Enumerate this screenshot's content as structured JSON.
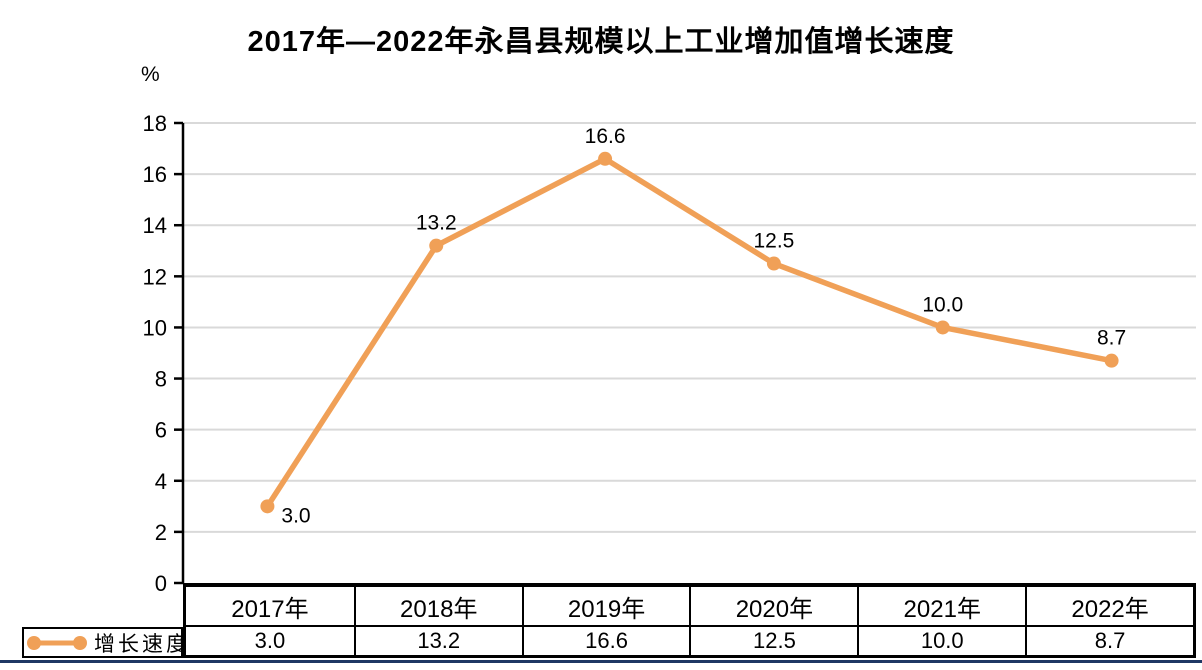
{
  "chart_data": {
    "type": "line",
    "title": "2017年—2022年永昌县规模以上工业增加值增长速度",
    "unit_label": "%",
    "categories": [
      "2017年",
      "2018年",
      "2019年",
      "2020年",
      "2021年",
      "2022年"
    ],
    "series": [
      {
        "name": "增长速度",
        "values": [
          3.0,
          13.2,
          16.6,
          12.5,
          10.0,
          8.7
        ],
        "value_labels": [
          "3.0",
          "13.2",
          "16.6",
          "12.5",
          "10.0",
          "8.7"
        ],
        "color": "#F0A057"
      }
    ],
    "ylim": [
      0,
      18
    ],
    "yticks": [
      "0",
      "2",
      "4",
      "6",
      "8",
      "10",
      "12",
      "14",
      "16",
      "18"
    ],
    "grid": true,
    "gridline_color": "#D9D9D9",
    "axis_color": "#000000",
    "data_label_color": "#000000",
    "legend_position": "bottom-left-table"
  },
  "page": {
    "bottom_rule_color": "#1F3864"
  }
}
